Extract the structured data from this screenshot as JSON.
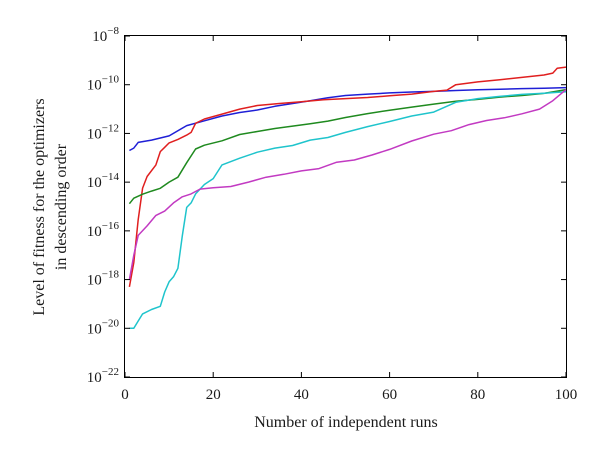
{
  "chart_data": {
    "type": "line",
    "xlabel": "Number of independent runs",
    "ylabel_lines": [
      "Level of fitness for the optimizers",
      "in descending order"
    ],
    "xlim": [
      0,
      100
    ],
    "ylim": [
      1e-22,
      1e-08
    ],
    "yscale": "log",
    "grid": false,
    "xticks": [
      0,
      20,
      40,
      60,
      80,
      100
    ],
    "yticks": [
      {
        "value": 1e-08,
        "base": "10",
        "exp": "−8"
      },
      {
        "value": 1e-10,
        "base": "10",
        "exp": "−10"
      },
      {
        "value": 1e-12,
        "base": "10",
        "exp": "−12"
      },
      {
        "value": 1e-14,
        "base": "10",
        "exp": "−14"
      },
      {
        "value": 1e-16,
        "base": "10",
        "exp": "−16"
      },
      {
        "value": 1e-18,
        "base": "10",
        "exp": "−18"
      },
      {
        "value": 1e-20,
        "base": "10",
        "exp": "−20"
      },
      {
        "value": 1e-22,
        "base": "10",
        "exp": "−22"
      }
    ],
    "series": [
      {
        "color": "#1f1fd6",
        "points": [
          [
            1,
            2e-13
          ],
          [
            2,
            2.5e-13
          ],
          [
            3,
            4.3e-13
          ],
          [
            6,
            5.3e-13
          ],
          [
            10,
            7.9e-13
          ],
          [
            14,
            2.1e-12
          ],
          [
            18,
            3.3e-12
          ],
          [
            22,
            5.2e-12
          ],
          [
            26,
            7.2e-12
          ],
          [
            30,
            9.2e-12
          ],
          [
            34,
            1.3e-11
          ],
          [
            38,
            1.7e-11
          ],
          [
            42,
            2.2e-11
          ],
          [
            46,
            2.9e-11
          ],
          [
            50,
            3.6e-11
          ],
          [
            55,
            4.1e-11
          ],
          [
            60,
            4.6e-11
          ],
          [
            65,
            5e-11
          ],
          [
            70,
            5.3e-11
          ],
          [
            75,
            5.8e-11
          ],
          [
            80,
            6.2e-11
          ],
          [
            85,
            6.5e-11
          ],
          [
            90,
            6.9e-11
          ],
          [
            95,
            7.2e-11
          ],
          [
            100,
            7.6e-11
          ]
        ]
      },
      {
        "color": "#e01f1f",
        "points": [
          [
            1,
            5e-19
          ],
          [
            2,
            5e-18
          ],
          [
            3,
            2.9e-16
          ],
          [
            4,
            5.7e-15
          ],
          [
            5,
            1.7e-14
          ],
          [
            7,
            5.1e-14
          ],
          [
            8,
            1.8e-13
          ],
          [
            9,
            2.7e-13
          ],
          [
            10,
            4.1e-13
          ],
          [
            12,
            5.7e-13
          ],
          [
            14,
            8.5e-13
          ],
          [
            15,
            1.1e-12
          ],
          [
            16,
            2.6e-12
          ],
          [
            18,
            3.9e-12
          ],
          [
            22,
            6.2e-12
          ],
          [
            26,
            1e-11
          ],
          [
            30,
            1.4e-11
          ],
          [
            35,
            1.7e-11
          ],
          [
            40,
            2e-11
          ],
          [
            45,
            2.4e-11
          ],
          [
            50,
            2.7e-11
          ],
          [
            55,
            3e-11
          ],
          [
            60,
            3.5e-11
          ],
          [
            65,
            4.1e-11
          ],
          [
            70,
            5.3e-11
          ],
          [
            73,
            6e-11
          ],
          [
            75,
            1e-10
          ],
          [
            80,
            1.3e-10
          ],
          [
            85,
            1.6e-10
          ],
          [
            90,
            2e-10
          ],
          [
            95,
            2.5e-10
          ],
          [
            97,
            3e-10
          ],
          [
            98,
            4.7e-10
          ],
          [
            100,
            5.3e-10
          ]
        ]
      },
      {
        "color": "#1f8a1f",
        "points": [
          [
            1,
            1.3e-15
          ],
          [
            2,
            2.2e-15
          ],
          [
            4,
            3.2e-15
          ],
          [
            6,
            4.3e-15
          ],
          [
            8,
            5.6e-15
          ],
          [
            10,
            1e-14
          ],
          [
            12,
            1.6e-14
          ],
          [
            14,
            6.3e-14
          ],
          [
            16,
            2.3e-13
          ],
          [
            18,
            3.3e-13
          ],
          [
            22,
            5e-13
          ],
          [
            26,
            9e-13
          ],
          [
            30,
            1.2e-12
          ],
          [
            34,
            1.6e-12
          ],
          [
            38,
            2e-12
          ],
          [
            42,
            2.5e-12
          ],
          [
            46,
            3.2e-12
          ],
          [
            50,
            4.5e-12
          ],
          [
            55,
            6.5e-12
          ],
          [
            60,
            9e-12
          ],
          [
            65,
            1.2e-11
          ],
          [
            70,
            1.6e-11
          ],
          [
            75,
            2.1e-11
          ],
          [
            80,
            2.5e-11
          ],
          [
            85,
            3.1e-11
          ],
          [
            90,
            3.6e-11
          ],
          [
            95,
            4.4e-11
          ],
          [
            100,
            6.3e-11
          ]
        ]
      },
      {
        "color": "#1fc4cc",
        "points": [
          [
            1,
            1e-20
          ],
          [
            2,
            1e-20
          ],
          [
            3,
            2e-20
          ],
          [
            4,
            3.9e-20
          ],
          [
            6,
            5.9e-20
          ],
          [
            8,
            8e-20
          ],
          [
            9,
            3.1e-19
          ],
          [
            10,
            8.1e-19
          ],
          [
            11,
            1.3e-18
          ],
          [
            12,
            2.9e-18
          ],
          [
            13,
            6.2e-17
          ],
          [
            14,
            9.2e-16
          ],
          [
            15,
            1.4e-15
          ],
          [
            16,
            3.3e-15
          ],
          [
            18,
            8e-15
          ],
          [
            20,
            1.4e-14
          ],
          [
            22,
            5.1e-14
          ],
          [
            26,
            9.6e-14
          ],
          [
            30,
            1.7e-13
          ],
          [
            34,
            2.5e-13
          ],
          [
            38,
            3.2e-13
          ],
          [
            42,
            5.3e-13
          ],
          [
            46,
            6.8e-13
          ],
          [
            50,
            1.1e-12
          ],
          [
            55,
            1.9e-12
          ],
          [
            60,
            3.1e-12
          ],
          [
            65,
            5.2e-12
          ],
          [
            70,
            7.5e-12
          ],
          [
            75,
            1.9e-11
          ],
          [
            80,
            2.7e-11
          ],
          [
            85,
            3.3e-11
          ],
          [
            90,
            4e-11
          ],
          [
            95,
            4.5e-11
          ],
          [
            100,
            5.1e-11
          ]
        ]
      },
      {
        "color": "#c23ac2",
        "points": [
          [
            1,
            1e-18
          ],
          [
            2,
            1e-17
          ],
          [
            3,
            6.5e-17
          ],
          [
            5,
            1.6e-16
          ],
          [
            7,
            4.3e-16
          ],
          [
            9,
            6.5e-16
          ],
          [
            11,
            1.4e-15
          ],
          [
            13,
            2.5e-15
          ],
          [
            15,
            3.3e-15
          ],
          [
            17,
            5.2e-15
          ],
          [
            20,
            5.9e-15
          ],
          [
            24,
            6.6e-15
          ],
          [
            28,
            1e-14
          ],
          [
            32,
            1.6e-14
          ],
          [
            36,
            2.1e-14
          ],
          [
            40,
            2.9e-14
          ],
          [
            44,
            3.6e-14
          ],
          [
            48,
            6.6e-14
          ],
          [
            52,
            8.1e-14
          ],
          [
            56,
            1.3e-13
          ],
          [
            60,
            2.2e-13
          ],
          [
            65,
            4.9e-13
          ],
          [
            70,
            9.3e-13
          ],
          [
            74,
            1.3e-12
          ],
          [
            78,
            2.3e-12
          ],
          [
            82,
            3.4e-12
          ],
          [
            86,
            4.4e-12
          ],
          [
            90,
            6.4e-12
          ],
          [
            94,
            1e-11
          ],
          [
            97,
            2.2e-11
          ],
          [
            100,
            6.3e-11
          ]
        ]
      }
    ]
  }
}
